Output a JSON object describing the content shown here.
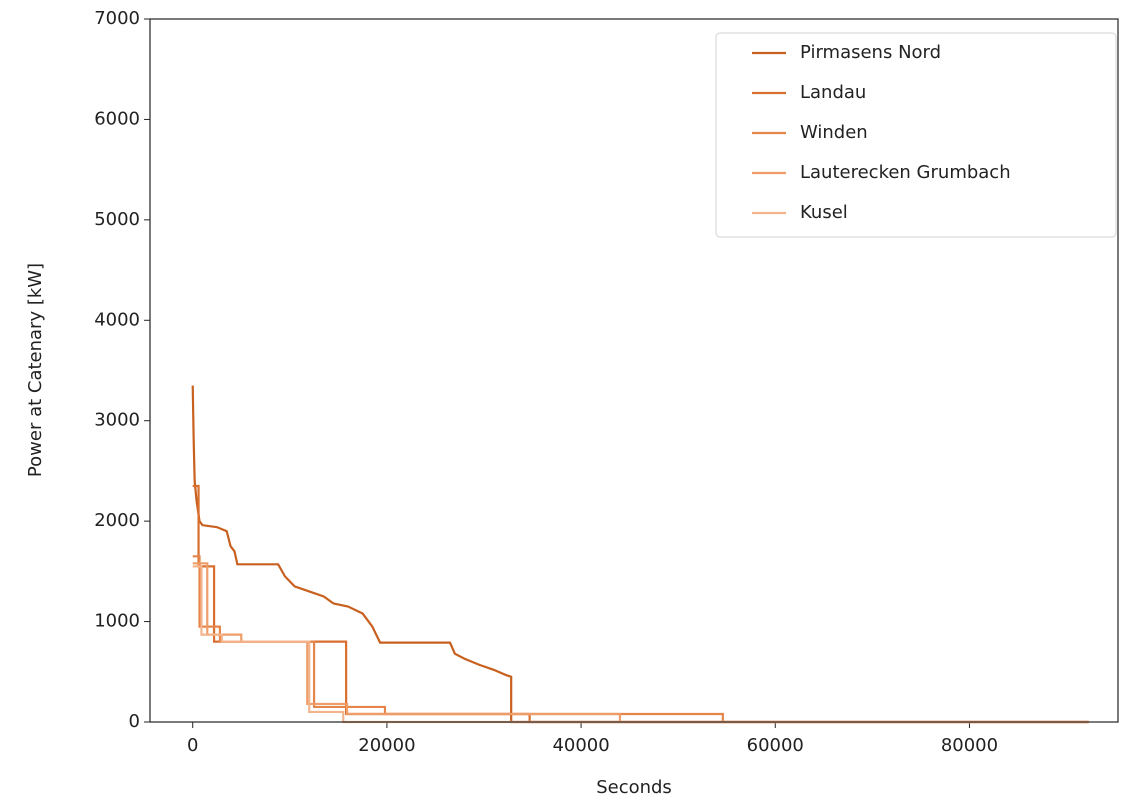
{
  "chart_data": {
    "type": "line",
    "xlabel": "Seconds",
    "ylabel": "Power at Catenary [kW]",
    "xlim": [
      -4400,
      95300
    ],
    "ylim": [
      0,
      7000
    ],
    "xticks": [
      0,
      20000,
      40000,
      60000,
      80000
    ],
    "yticks": [
      0,
      1000,
      2000,
      3000,
      4000,
      5000,
      6000,
      7000
    ],
    "grid": false,
    "legend": "upper right",
    "series": [
      {
        "name": "Pirmasens Nord",
        "color": "#c8601f",
        "x": [
          0,
          100,
          200,
          400,
          700,
          1000,
          2500,
          3500,
          3900,
          4300,
          4600,
          8800,
          9500,
          10500,
          12000,
          13500,
          14500,
          16000,
          17500,
          18500,
          19300,
          26500,
          27000,
          28000,
          29500,
          31000,
          32200,
          32800,
          32800,
          92270
        ],
        "values": [
          3350,
          2800,
          2400,
          2200,
          2000,
          1960,
          1940,
          1900,
          1750,
          1700,
          1570,
          1570,
          1450,
          1350,
          1300,
          1250,
          1180,
          1150,
          1080,
          950,
          790,
          790,
          680,
          630,
          570,
          520,
          470,
          450,
          0,
          0
        ]
      },
      {
        "name": "Landau",
        "color": "#d96f2e",
        "x": [
          0,
          600,
          600,
          2200,
          2200,
          15800,
          15800,
          34700,
          34700,
          92270
        ],
        "values": [
          2350,
          2350,
          1550,
          1550,
          800,
          800,
          80,
          80,
          0,
          0
        ]
      },
      {
        "name": "Winden",
        "color": "#e6854a",
        "x": [
          0,
          700,
          700,
          2800,
          2800,
          12500,
          12500,
          19800,
          19800,
          54600,
          54600,
          92270
        ],
        "values": [
          1650,
          1650,
          950,
          950,
          800,
          800,
          150,
          150,
          80,
          80,
          0,
          0
        ]
      },
      {
        "name": "Lauterecken Grumbach",
        "color": "#ee9c68",
        "x": [
          0,
          1500,
          1500,
          5000,
          5000,
          11800,
          11800,
          15900,
          15900,
          44000,
          44000,
          92270
        ],
        "values": [
          1580,
          1580,
          870,
          870,
          800,
          800,
          180,
          180,
          80,
          80,
          0,
          0
        ]
      },
      {
        "name": "Kusel",
        "color": "#f4b48b",
        "x": [
          0,
          900,
          900,
          3000,
          3000,
          12000,
          12000,
          15500,
          15500,
          92270
        ],
        "values": [
          1550,
          1550,
          870,
          870,
          800,
          800,
          100,
          100,
          0,
          0
        ]
      }
    ]
  }
}
